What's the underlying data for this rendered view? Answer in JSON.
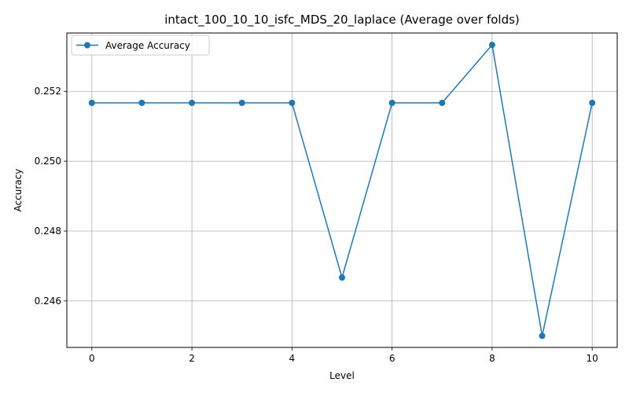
{
  "chart_data": {
    "type": "line",
    "title": "intact_100_10_10_isfc_MDS_20_laplace (Average over folds)",
    "xlabel": "Level",
    "ylabel": "Accuracy",
    "x": [
      0,
      1,
      2,
      3,
      4,
      5,
      6,
      7,
      8,
      9,
      10
    ],
    "series": [
      {
        "name": "Average Accuracy",
        "color": "#1f77b4",
        "marker": "circle",
        "values": [
          0.25167,
          0.25167,
          0.25167,
          0.25167,
          0.25167,
          0.24667,
          0.25167,
          0.25167,
          0.25333,
          0.245,
          0.25167
        ]
      }
    ],
    "xlim": [
      -0.5,
      10.5
    ],
    "ylim": [
      0.24467,
      0.25367
    ],
    "xticks": [
      0,
      2,
      4,
      6,
      8,
      10
    ],
    "xtick_labels": [
      "0",
      "2",
      "4",
      "6",
      "8",
      "10"
    ],
    "yticks": [
      0.246,
      0.248,
      0.25,
      0.252
    ],
    "ytick_labels": [
      "0.246",
      "0.248",
      "0.250",
      "0.252"
    ],
    "grid": true,
    "legend": "upper-left"
  }
}
